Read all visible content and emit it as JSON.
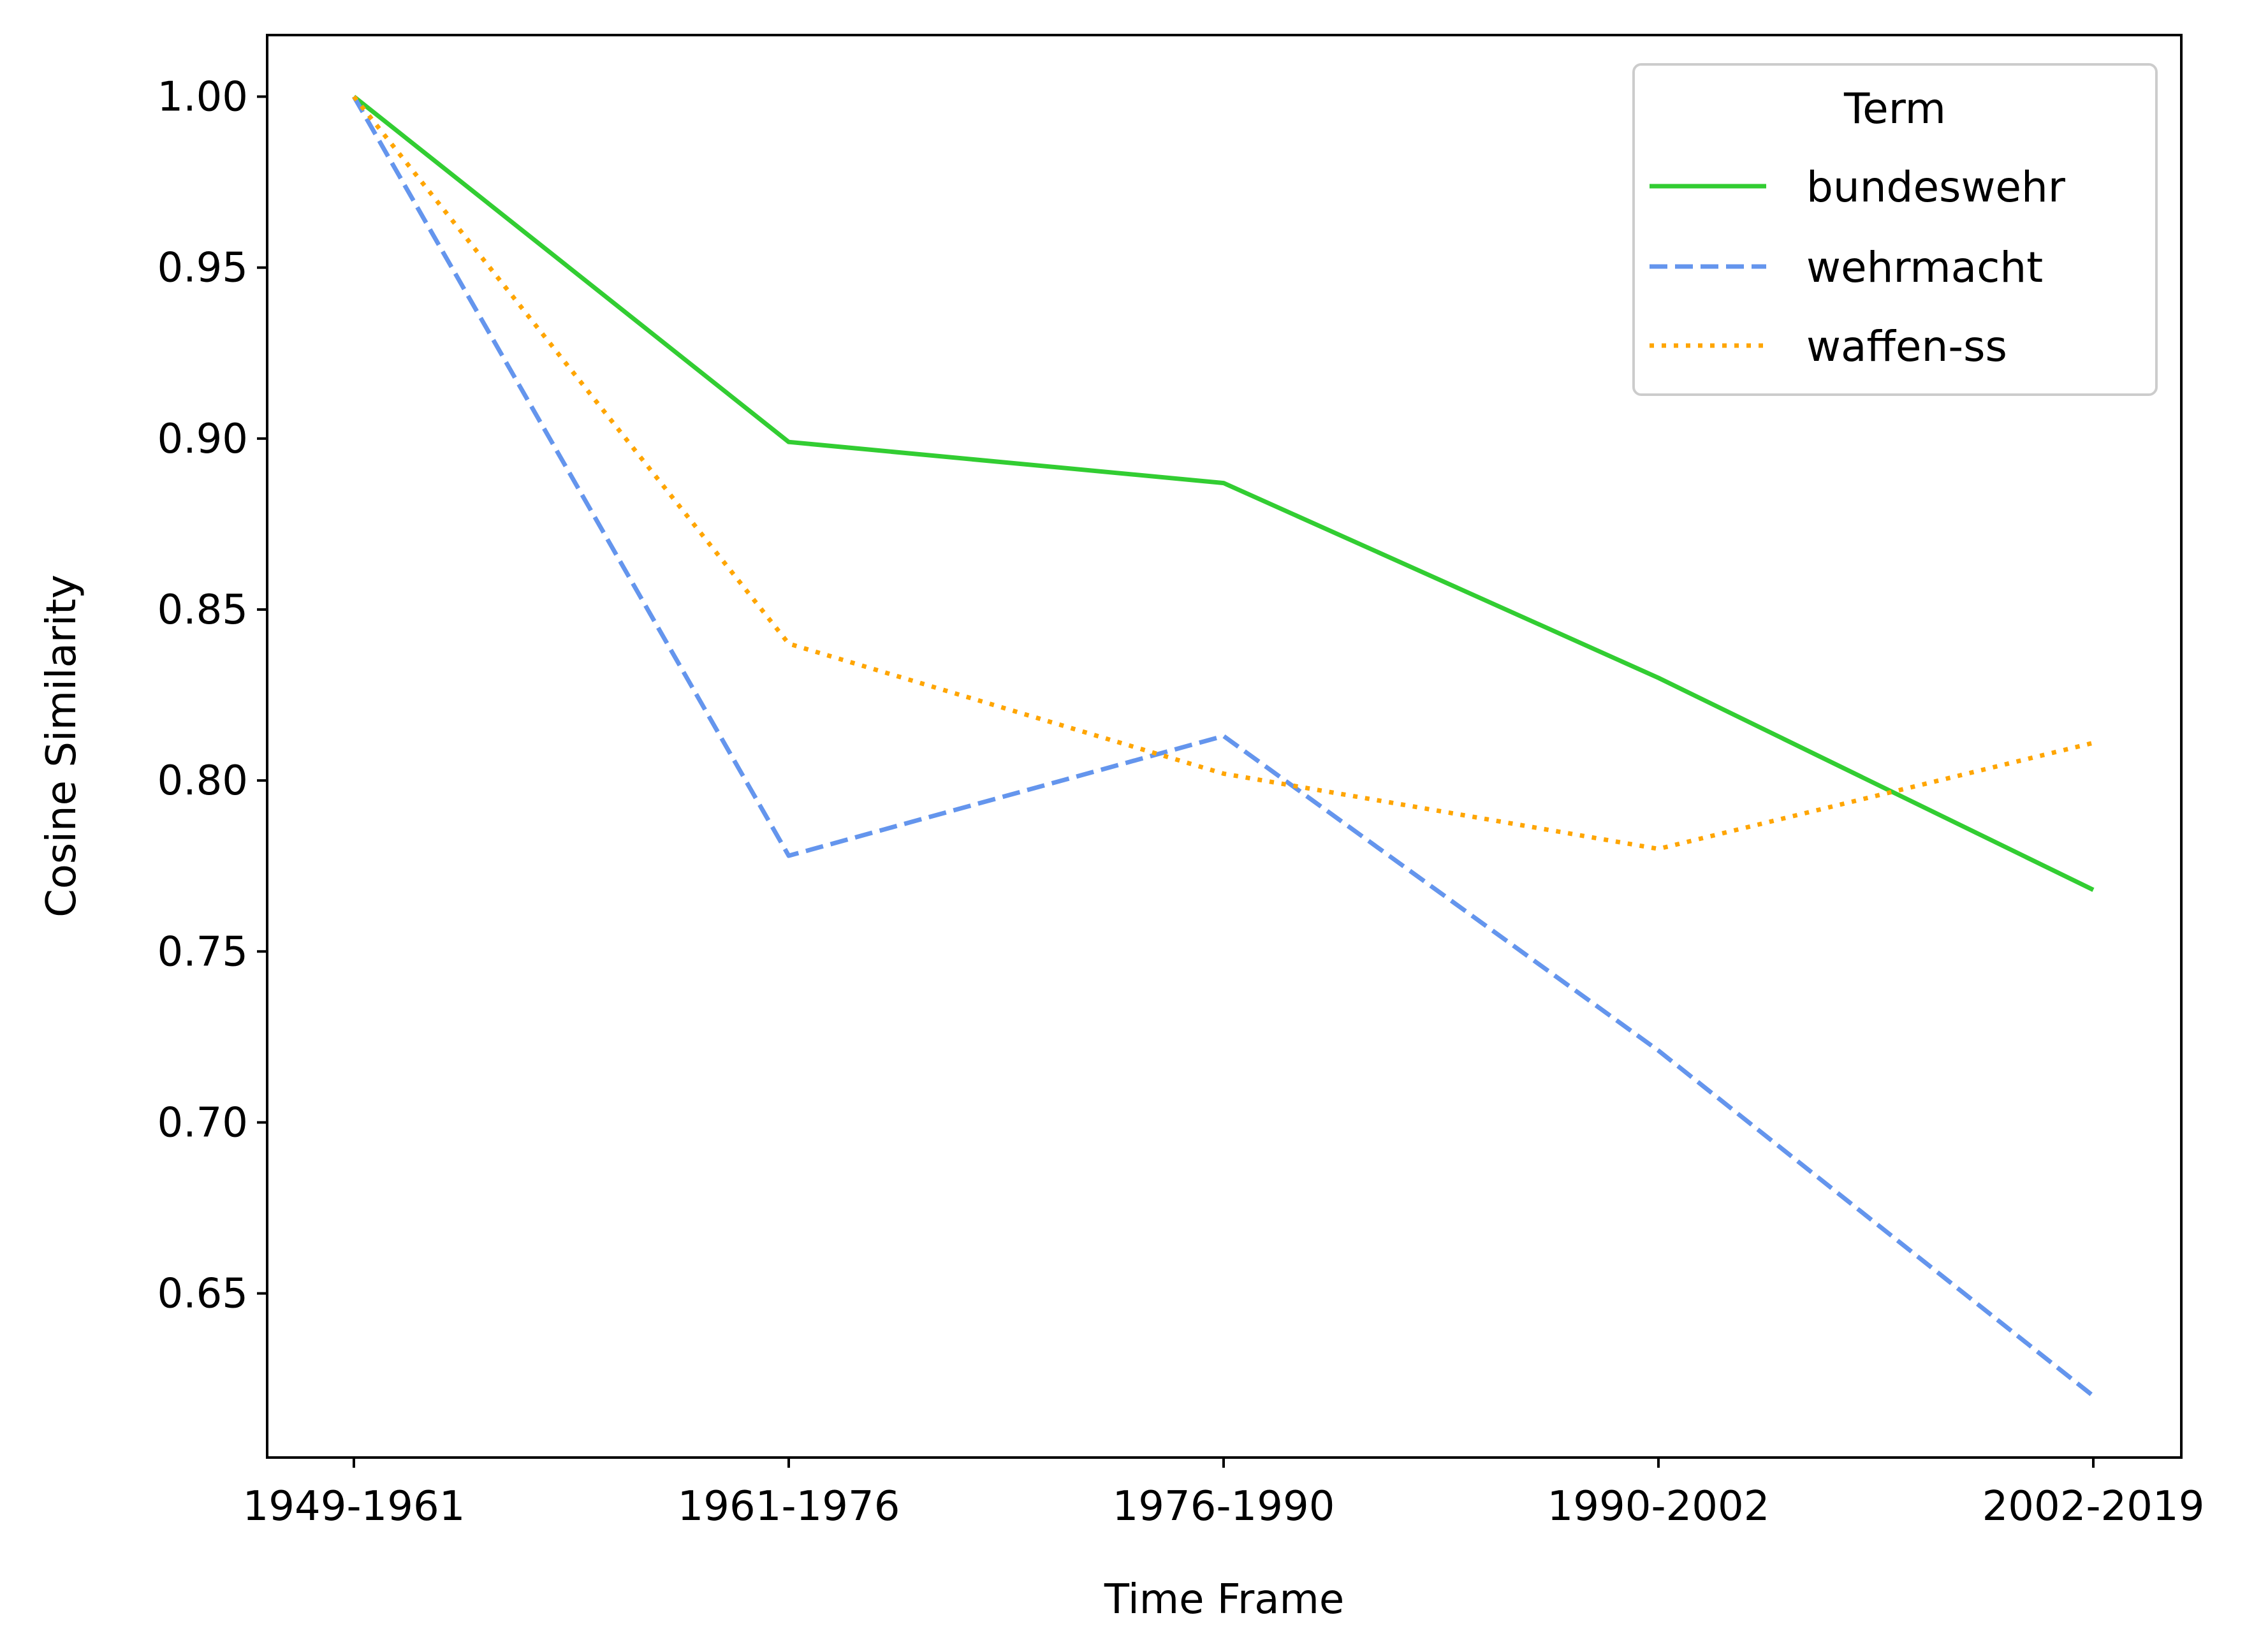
{
  "chart_data": {
    "type": "line",
    "title": "",
    "xlabel": "Time Frame",
    "ylabel": "Cosine Similarity",
    "categories": [
      "1949-1961",
      "1961-1976",
      "1976-1990",
      "1990-2002",
      "2002-2019"
    ],
    "ylim": [
      0.602,
      1.018
    ],
    "yticks": [
      0.65,
      0.7,
      0.75,
      0.8,
      0.85,
      0.9,
      0.95,
      1.0
    ],
    "ytick_labels": [
      "0.65",
      "0.70",
      "0.75",
      "0.80",
      "0.85",
      "0.90",
      "0.95",
      "1.00"
    ],
    "grid": false,
    "legend": {
      "title": "Term",
      "position": "top-right"
    },
    "series": [
      {
        "name": "bundeswehr",
        "values": [
          1.0,
          0.899,
          0.887,
          0.83,
          0.768
        ],
        "color": "#32cd32",
        "style": "solid"
      },
      {
        "name": "wehrmacht",
        "values": [
          1.0,
          0.778,
          0.813,
          0.721,
          0.62
        ],
        "color": "#6495ed",
        "style": "dashed"
      },
      {
        "name": "waffen-ss",
        "values": [
          1.0,
          0.84,
          0.802,
          0.78,
          0.811
        ],
        "color": "#ffa500",
        "style": "dotted"
      }
    ]
  }
}
